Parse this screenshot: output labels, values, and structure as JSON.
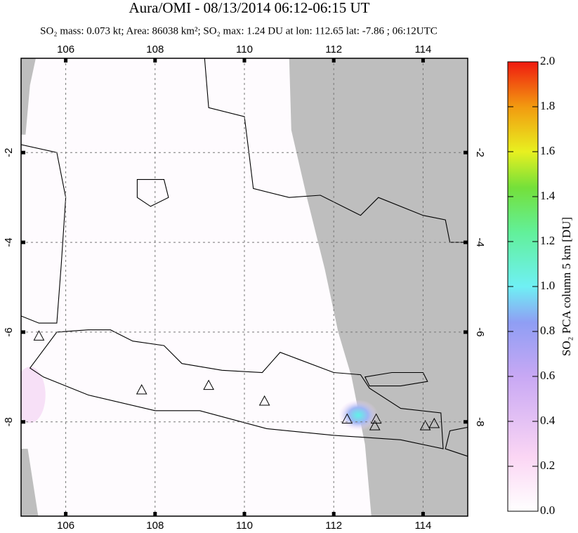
{
  "header": {
    "title": "Aura/OMI - 08/13/2014 06:12-06:15 UT",
    "subtitle": "SO₂ mass: 0.073 kt; Area: 86038 km²; SO₂ max: 1.24 DU at lon: 112.65 lat: -7.86 ; 06:12UTC"
  },
  "map": {
    "xlim": [
      105,
      115
    ],
    "ylim": [
      -10.1,
      0.1
    ],
    "xticks": [
      106,
      108,
      110,
      112,
      114
    ],
    "yticks": [
      -2,
      -4,
      -6,
      -8
    ],
    "grid": true
  },
  "colorbar": {
    "label": "SO₂ PCA column 5 km [DU]",
    "lim": [
      0,
      2
    ],
    "ticks": [
      {
        "value": 0,
        "label": "0.0"
      },
      0.2,
      0.4,
      0.6,
      0.8,
      {
        "value": 1,
        "label": "1.0"
      },
      1.2,
      1.4,
      1.6,
      1.8,
      {
        "value": 2,
        "label": "2.0"
      }
    ]
  }
}
